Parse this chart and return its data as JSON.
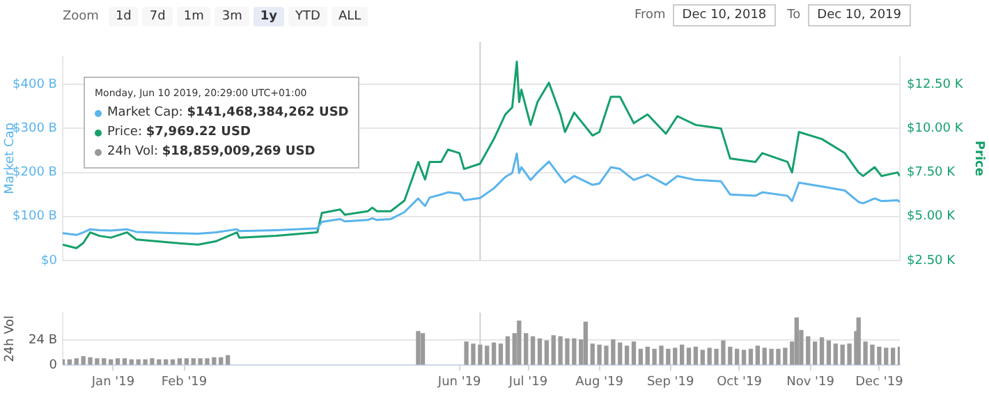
{
  "chart_data": [
    {
      "type": "line",
      "ylabel": "Market Cap",
      "y2label": "Price",
      "xlim": [
        "2018-12-10",
        "2019-12-10"
      ],
      "ylim": [
        0,
        464
      ],
      "yticks": [
        {
          "value": 0,
          "label": "$0"
        },
        {
          "value": 100,
          "label": "$100 B"
        },
        {
          "value": 200,
          "label": "$200 B"
        },
        {
          "value": 300,
          "label": "$300 B"
        },
        {
          "value": 400,
          "label": "$400 B"
        }
      ],
      "y2lim": [
        2.5,
        14.1
      ],
      "y2ticks": [
        {
          "value": 2.5,
          "label": "$2.50 K"
        },
        {
          "value": 5,
          "label": "$5.00 K"
        },
        {
          "value": 7.5,
          "label": "$7.50 K"
        },
        {
          "value": 10,
          "label": "$10.00 K"
        },
        {
          "value": 12.5,
          "label": "$12.50 K"
        }
      ],
      "grid": "y",
      "tick_labels": "y",
      "x": [
        "2018-12-10",
        "2018-12-16",
        "2018-12-19",
        "2018-12-22",
        "2018-12-26",
        "2018-12-31",
        "2019-01-07",
        "2019-01-11",
        "2019-01-28",
        "2019-02-07",
        "2019-02-15",
        "2019-02-24",
        "2019-02-25",
        "2019-03-13",
        "2019-03-31",
        "2019-04-02",
        "2019-04-10",
        "2019-04-12",
        "2019-04-22",
        "2019-04-24",
        "2019-04-26",
        "2019-05-02",
        "2019-05-08",
        "2019-05-14",
        "2019-05-17",
        "2019-05-19",
        "2019-05-24",
        "2019-05-27",
        "2019-06-01",
        "2019-06-03",
        "2019-06-10",
        "2019-06-16",
        "2019-06-21",
        "2019-06-24",
        "2019-06-26",
        "2019-06-27",
        "2019-06-28",
        "2019-07-02",
        "2019-07-05",
        "2019-07-10",
        "2019-07-15",
        "2019-07-17",
        "2019-07-21",
        "2019-07-29",
        "2019-08-01",
        "2019-08-06",
        "2019-08-10",
        "2019-08-16",
        "2019-08-22",
        "2019-08-30",
        "2019-09-04",
        "2019-09-12",
        "2019-09-23",
        "2019-09-27",
        "2019-10-08",
        "2019-10-11",
        "2019-10-22",
        "2019-10-24",
        "2019-10-27",
        "2019-11-06",
        "2019-11-16",
        "2019-11-22",
        "2019-11-24",
        "2019-11-29",
        "2019-12-02",
        "2019-12-09",
        "2019-12-10"
      ],
      "series": [
        {
          "color": "#5ab4ec",
          "values": [
            62,
            58,
            64,
            71,
            69,
            68,
            71,
            65,
            62,
            61,
            64,
            71,
            67,
            69,
            73,
            88,
            94,
            89,
            92,
            96,
            92,
            94,
            110,
            141,
            124,
            143,
            150,
            155,
            152,
            137,
            142,
            164,
            190,
            199,
            243,
            199,
            212,
            183,
            200,
            225,
            190,
            177,
            192,
            172,
            175,
            212,
            208,
            183,
            195,
            172,
            192,
            183,
            180,
            150,
            147,
            155,
            147,
            135,
            177,
            168,
            159,
            133,
            130,
            141,
            135,
            137,
            133
          ]
        },
        {
          "color": "#16a06c",
          "axis": "y2",
          "values": [
            3.4,
            3.2,
            3.5,
            4.1,
            3.9,
            3.8,
            4.1,
            3.7,
            3.5,
            3.4,
            3.6,
            4.1,
            3.8,
            3.9,
            4.1,
            5.2,
            5.4,
            5.1,
            5.3,
            5.5,
            5.3,
            5.3,
            5.9,
            8.1,
            7.1,
            8.1,
            8.1,
            8.8,
            8.6,
            7.7,
            8.0,
            9.4,
            10.8,
            11.2,
            13.8,
            11.5,
            12.2,
            10.2,
            11.5,
            12.6,
            10.8,
            9.8,
            10.9,
            9.6,
            9.8,
            11.8,
            11.8,
            10.3,
            10.8,
            9.7,
            10.7,
            10.2,
            10.0,
            8.3,
            8.1,
            8.6,
            8.1,
            7.5,
            9.8,
            9.4,
            8.6,
            7.5,
            7.3,
            7.8,
            7.3,
            7.5,
            7.3
          ]
        }
      ],
      "ref_lines": [
        {
          "axis": "x",
          "value": "2019-06-10",
          "color": "#d0d0d0"
        }
      ],
      "annotations": [
        "Zoom",
        "1d",
        "7d",
        "1m",
        "3m",
        "1y",
        "YTD",
        "ALL",
        "From",
        "Dec 10, 2018",
        "To",
        "Dec 10, 2019"
      ]
    },
    {
      "type": "bar",
      "ylabel": "24h Vol",
      "color": "#9a9a9a",
      "xlim": [
        "2018-12-10",
        "2019-12-10"
      ],
      "ylim": [
        0,
        50
      ],
      "yticks": [
        0,
        {
          "value": 24,
          "label": "24 B"
        }
      ],
      "grid": "y",
      "xticks": [
        {
          "value": "2019-01-01",
          "label": "Jan '19"
        },
        {
          "value": "2019-02-01",
          "label": "Feb '19"
        },
        {
          "value": "2019-06-01",
          "label": "Jun '19"
        },
        {
          "value": "2019-07-01",
          "label": "Jul '19"
        },
        {
          "value": "2019-08-01",
          "label": "Aug '19"
        },
        {
          "value": "2019-09-01",
          "label": "Sep '19"
        },
        {
          "value": "2019-10-01",
          "label": "Oct '19"
        },
        {
          "value": "2019-11-01",
          "label": "Nov '19"
        },
        {
          "value": "2019-12-01",
          "label": "Dec '19"
        }
      ],
      "x": [
        "2018-12-10",
        "2018-12-13",
        "2018-12-16",
        "2018-12-19",
        "2018-12-22",
        "2018-12-25",
        "2018-12-28",
        "2018-12-31",
        "2019-01-03",
        "2019-01-06",
        "2019-01-09",
        "2019-01-12",
        "2019-01-15",
        "2019-01-18",
        "2019-01-21",
        "2019-01-24",
        "2019-01-27",
        "2019-01-30",
        "2019-02-02",
        "2019-02-05",
        "2019-02-08",
        "2019-02-11",
        "2019-02-14",
        "2019-02-17",
        "2019-02-20",
        "2019-05-14",
        "2019-05-16",
        "2019-06-04",
        "2019-06-07",
        "2019-06-10",
        "2019-06-13",
        "2019-06-16",
        "2019-06-19",
        "2019-06-22",
        "2019-06-25",
        "2019-06-27",
        "2019-06-30",
        "2019-07-03",
        "2019-07-06",
        "2019-07-09",
        "2019-07-12",
        "2019-07-15",
        "2019-07-18",
        "2019-07-21",
        "2019-07-24",
        "2019-07-26",
        "2019-07-29",
        "2019-08-01",
        "2019-08-04",
        "2019-08-07",
        "2019-08-10",
        "2019-08-13",
        "2019-08-16",
        "2019-08-19",
        "2019-08-22",
        "2019-08-25",
        "2019-08-28",
        "2019-08-31",
        "2019-09-03",
        "2019-09-06",
        "2019-09-09",
        "2019-09-12",
        "2019-09-15",
        "2019-09-18",
        "2019-09-21",
        "2019-09-24",
        "2019-09-27",
        "2019-09-30",
        "2019-10-03",
        "2019-10-06",
        "2019-10-09",
        "2019-10-12",
        "2019-10-15",
        "2019-10-18",
        "2019-10-21",
        "2019-10-24",
        "2019-10-26",
        "2019-10-28",
        "2019-10-31",
        "2019-11-03",
        "2019-11-06",
        "2019-11-09",
        "2019-11-12",
        "2019-11-15",
        "2019-11-18",
        "2019-11-21",
        "2019-11-22",
        "2019-11-25",
        "2019-11-28",
        "2019-12-01",
        "2019-12-04",
        "2019-12-07",
        "2019-12-10"
      ],
      "values": [
        5,
        5,
        6,
        8,
        7,
        6,
        6,
        5,
        6,
        6,
        5,
        5,
        5,
        6,
        5,
        5,
        5,
        6,
        6,
        6,
        6,
        6,
        7,
        7,
        9,
        32,
        30,
        22,
        20,
        19,
        18,
        21,
        20,
        27,
        30,
        42,
        30,
        27,
        25,
        23,
        28,
        27,
        25,
        25,
        24,
        41,
        20,
        19,
        18,
        24,
        21,
        18,
        22,
        15,
        17,
        15,
        18,
        15,
        16,
        19,
        16,
        17,
        14,
        16,
        15,
        23,
        17,
        15,
        14,
        15,
        18,
        16,
        15,
        15,
        16,
        22,
        45,
        33,
        27,
        22,
        26,
        23,
        20,
        19,
        20,
        32,
        45,
        22,
        19,
        17,
        16,
        16,
        17
      ],
      "ref_lines": [
        {
          "axis": "x",
          "value": "2019-06-10",
          "color": "#d0d0d0"
        }
      ],
      "annotations": [
        "Monday, Jun 10 2019, 20:29:00 UTC+01:00",
        "Market Cap: $141,468,384,262 USD",
        "Price: $7,969.22 USD",
        "24h Vol: $18,859,009,269 USD"
      ]
    }
  ]
}
